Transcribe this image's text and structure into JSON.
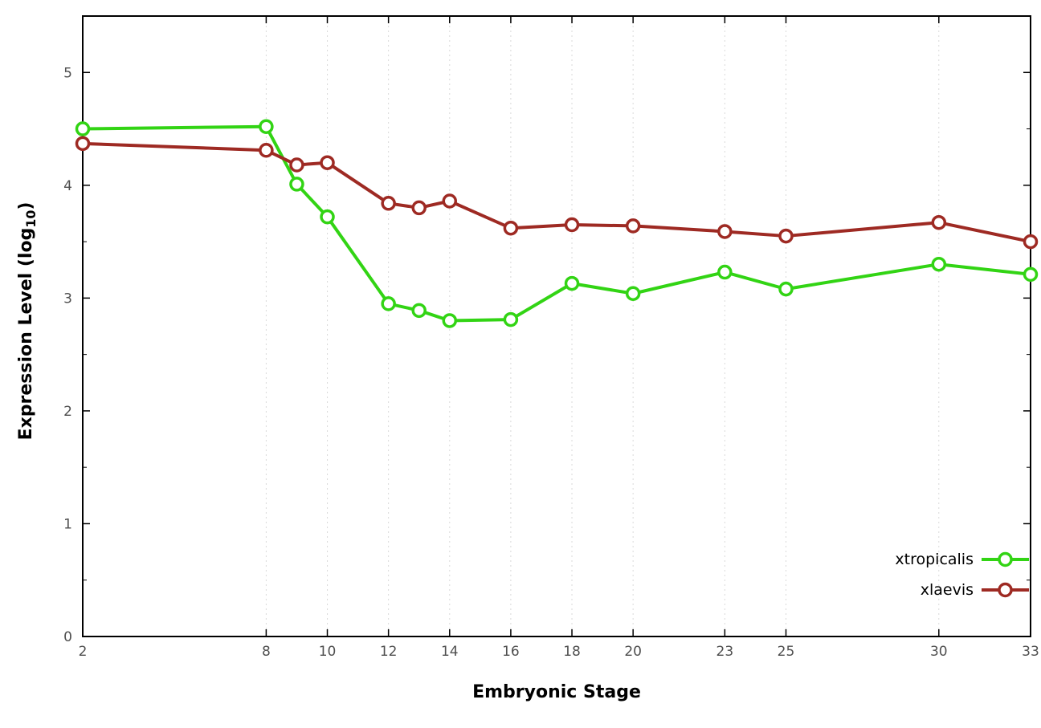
{
  "chart_data": {
    "type": "line",
    "xlabel": "Embryonic Stage",
    "ylabel_prefix": "Expression Level (log",
    "ylabel_sub": "10",
    "ylabel_suffix": ")",
    "x": [
      2,
      8,
      9,
      10,
      12,
      13,
      14,
      16,
      18,
      20,
      23,
      25,
      30,
      33
    ],
    "x_ticks": [
      2,
      8,
      10,
      12,
      14,
      16,
      18,
      20,
      23,
      25,
      30,
      33
    ],
    "y_ticks": [
      0,
      1,
      2,
      3,
      4,
      5
    ],
    "xlim": [
      2,
      33
    ],
    "ylim": [
      0,
      5.5
    ],
    "grid": "vertical-dotted",
    "legend_position": "inside-bottom-right",
    "series": [
      {
        "name": "xtropicalis",
        "color": "#32d414",
        "values": [
          4.5,
          4.52,
          4.01,
          3.72,
          2.95,
          2.89,
          2.8,
          2.81,
          3.13,
          3.04,
          3.23,
          3.08,
          3.3,
          3.21
        ]
      },
      {
        "name": "xlaevis",
        "color": "#9e2a23",
        "values": [
          4.37,
          4.31,
          4.18,
          4.2,
          3.84,
          3.8,
          3.86,
          3.62,
          3.65,
          3.64,
          3.59,
          3.55,
          3.67,
          3.5
        ]
      }
    ]
  },
  "colors": {
    "background": "#ffffff",
    "axis": "#000000",
    "grid": "#d9d9d9",
    "tick_label": "#4f4f4f",
    "legend_text": "#000000"
  }
}
